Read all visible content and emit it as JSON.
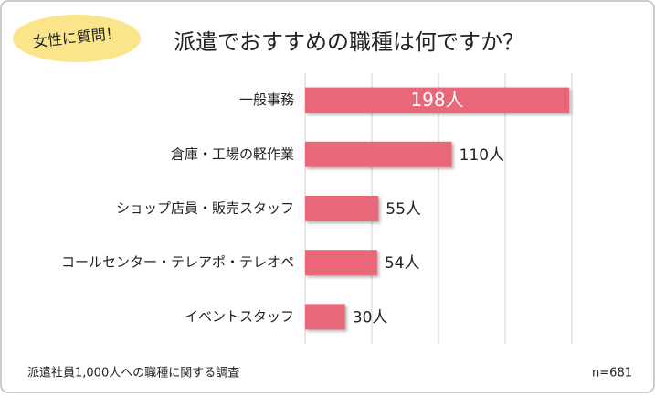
{
  "chart_data": {
    "type": "bar",
    "orientation": "horizontal",
    "badge": "女性に質問！",
    "title": "派遣でおすすめの職種は何ですか？",
    "categories": [
      "一般事務",
      "倉庫・工場の軽作業",
      "ショップ店員・販売スタッフ",
      "コールセンター・テレアポ・テレオペ",
      "イベントスタッフ"
    ],
    "values": [
      198,
      110,
      55,
      54,
      30
    ],
    "value_labels": [
      "198人",
      "110人",
      "55人",
      "54人",
      "30人"
    ],
    "color": "#e8677a",
    "xlim": [
      0,
      200
    ],
    "xticks": [
      0,
      50,
      100,
      150,
      200
    ],
    "grid": true,
    "note": "派遣社員1,000人への職種に関する調査",
    "sample": "n=681"
  }
}
